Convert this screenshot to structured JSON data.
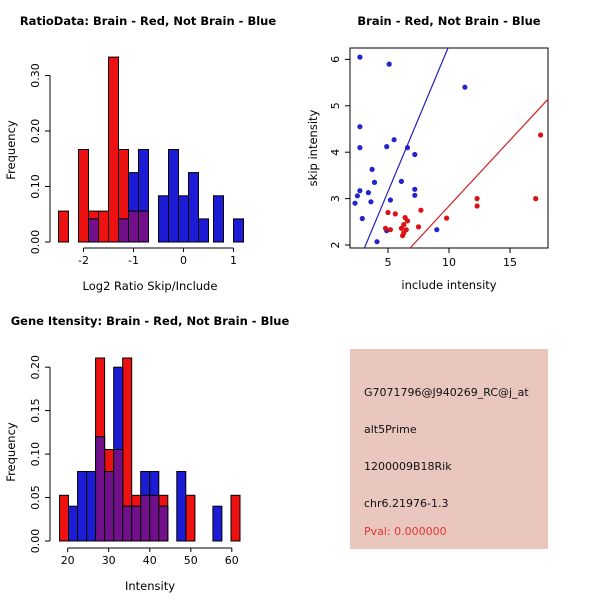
{
  "colors": {
    "red": "#ee1111",
    "blue": "#1c1cd6",
    "overlap_purple": "#72108c",
    "bar_border": "#000000",
    "point_red": "#dd1111",
    "point_blue": "#2424cc",
    "line_red": "#cc2020",
    "line_blue": "#2222bb",
    "info_box_pink": "#e9c6be",
    "pval_red": "#e03535",
    "axis_black": "#000000"
  },
  "chart_data": [
    {
      "id": "ratio_hist",
      "type": "bar",
      "title": "RatioData: Brain - Red, Not Brain - Blue",
      "xlabel": "Log2 Ratio Skip/Include",
      "ylabel": "Frequency",
      "xlim": [
        -2.67,
        1.27
      ],
      "ylim": [
        0,
        0.337
      ],
      "bin_width": 0.2,
      "grid": false,
      "xticks": [
        {
          "v": -2,
          "label": "-2"
        },
        {
          "v": -1,
          "label": "-1"
        },
        {
          "v": 0,
          "label": "0"
        },
        {
          "v": 1,
          "label": "1"
        }
      ],
      "yticks": [
        {
          "v": 0,
          "label": "0.00"
        },
        {
          "v": 0.1,
          "label": "0.10"
        },
        {
          "v": 0.2,
          "label": "0.20"
        },
        {
          "v": 0.3,
          "label": "0.30"
        }
      ],
      "series": [
        {
          "name": "Brain",
          "color_key": "red",
          "bars": [
            {
              "x0": -2.5,
              "h": 0.0556
            },
            {
              "x0": -2.1,
              "h": 0.1667
            },
            {
              "x0": -1.9,
              "h": 0.0556
            },
            {
              "x0": -1.7,
              "h": 0.0556
            },
            {
              "x0": -1.5,
              "h": 0.3333
            },
            {
              "x0": -1.3,
              "h": 0.1667
            },
            {
              "x0": -1.1,
              "h": 0.0556
            },
            {
              "x0": -0.9,
              "h": 0.0556
            }
          ]
        },
        {
          "name": "Not Brain",
          "color_key": "blue",
          "bars": [
            {
              "x0": -1.9,
              "h": 0.0417
            },
            {
              "x0": -1.3,
              "h": 0.0417
            },
            {
              "x0": -1.1,
              "h": 0.125
            },
            {
              "x0": -0.9,
              "h": 0.1667
            },
            {
              "x0": -0.5,
              "h": 0.0833
            },
            {
              "x0": -0.3,
              "h": 0.1667
            },
            {
              "x0": -0.1,
              "h": 0.0833
            },
            {
              "x0": 0.1,
              "h": 0.125
            },
            {
              "x0": 0.3,
              "h": 0.0417
            },
            {
              "x0": 0.6,
              "h": 0.0833
            },
            {
              "x0": 1.0,
              "h": 0.0417
            }
          ]
        }
      ]
    },
    {
      "id": "scatter",
      "type": "scatter",
      "title": "Brain - Red, Not Brain - Blue",
      "xlabel": "include intensity",
      "ylabel": "skip intensity",
      "xlim": [
        1.89,
        18.11
      ],
      "ylim": [
        1.935,
        6.246
      ],
      "grid": false,
      "xticks": [
        {
          "v": 5,
          "label": "5"
        },
        {
          "v": 10,
          "label": "10"
        },
        {
          "v": 15,
          "label": "15"
        }
      ],
      "yticks": [
        {
          "v": 2,
          "label": "2"
        },
        {
          "v": 3,
          "label": "3"
        },
        {
          "v": 4,
          "label": "4"
        },
        {
          "v": 5,
          "label": "5"
        },
        {
          "v": 6,
          "label": "6"
        }
      ],
      "series": [
        {
          "name": "Not Brain",
          "color_key": "point_blue",
          "points": [
            [
              2.7,
              6.05
            ],
            [
              5.1,
              5.9
            ],
            [
              11.3,
              5.4
            ],
            [
              2.7,
              4.55
            ],
            [
              5.5,
              4.27
            ],
            [
              2.7,
              4.1
            ],
            [
              4.9,
              4.12
            ],
            [
              6.6,
              4.1
            ],
            [
              7.2,
              3.95
            ],
            [
              3.7,
              3.63
            ],
            [
              3.9,
              3.35
            ],
            [
              6.1,
              3.37
            ],
            [
              2.7,
              3.17
            ],
            [
              3.4,
              3.13
            ],
            [
              2.5,
              3.06
            ],
            [
              3.6,
              2.93
            ],
            [
              2.3,
              2.9
            ],
            [
              5.2,
              2.97
            ],
            [
              7.2,
              3.2
            ],
            [
              7.2,
              3.07
            ],
            [
              2.9,
              2.57
            ],
            [
              4.1,
              2.07
            ],
            [
              4.9,
              2.31
            ],
            [
              9.0,
              2.33
            ]
          ]
        },
        {
          "name": "Brain",
          "color_key": "point_red",
          "points": [
            [
              17.5,
              4.37
            ],
            [
              17.1,
              3.0
            ],
            [
              12.3,
              3.0
            ],
            [
              12.3,
              2.84
            ],
            [
              9.8,
              2.58
            ],
            [
              7.7,
              2.75
            ],
            [
              7.5,
              2.39
            ],
            [
              6.6,
              2.52
            ],
            [
              6.5,
              2.33
            ],
            [
              6.4,
              2.59
            ],
            [
              6.3,
              2.44
            ],
            [
              6.3,
              2.26
            ],
            [
              6.2,
              2.2
            ],
            [
              6.1,
              2.36
            ],
            [
              5.6,
              2.67
            ],
            [
              5.0,
              2.7
            ],
            [
              4.8,
              2.36
            ],
            [
              5.2,
              2.33
            ]
          ]
        }
      ],
      "lines": [
        {
          "name": "not-brain-fit",
          "color_key": "line_blue",
          "slope": 0.63,
          "intercept": 0
        },
        {
          "name": "brain-fit",
          "color_key": "line_red",
          "slope": 0.284,
          "intercept": 0
        }
      ]
    },
    {
      "id": "gene_hist",
      "type": "bar",
      "title": "Gene Itensity: Brain - Red, Not Brain - Blue",
      "xlabel": "Intensity",
      "ylabel": "Frequency",
      "xlim": [
        15.68,
        63.7
      ],
      "ylim": [
        0,
        0.214
      ],
      "bin_width": 2.2,
      "grid": false,
      "xticks": [
        {
          "v": 20,
          "label": "20"
        },
        {
          "v": 30,
          "label": "30"
        },
        {
          "v": 40,
          "label": "40"
        },
        {
          "v": 50,
          "label": "50"
        },
        {
          "v": 60,
          "label": "60"
        }
      ],
      "yticks": [
        {
          "v": 0,
          "label": "0.00"
        },
        {
          "v": 0.05,
          "label": "0.05"
        },
        {
          "v": 0.1,
          "label": "0.10"
        },
        {
          "v": 0.15,
          "label": "0.15"
        },
        {
          "v": 0.2,
          "label": "0.20"
        }
      ],
      "series": [
        {
          "name": "Brain",
          "color_key": "red",
          "bars": [
            {
              "x0": 18.0,
              "h": 0.0526
            },
            {
              "x0": 26.8,
              "h": 0.2105
            },
            {
              "x0": 29.0,
              "h": 0.1053
            },
            {
              "x0": 31.2,
              "h": 0.1053
            },
            {
              "x0": 33.4,
              "h": 0.2105
            },
            {
              "x0": 35.6,
              "h": 0.0526
            },
            {
              "x0": 37.8,
              "h": 0.0526
            },
            {
              "x0": 40.0,
              "h": 0.0526
            },
            {
              "x0": 42.2,
              "h": 0.0526
            },
            {
              "x0": 48.8,
              "h": 0.0526
            },
            {
              "x0": 59.8,
              "h": 0.0526
            }
          ]
        },
        {
          "name": "Not Brain",
          "color_key": "blue",
          "bars": [
            {
              "x0": 20.2,
              "h": 0.04
            },
            {
              "x0": 22.4,
              "h": 0.08
            },
            {
              "x0": 24.6,
              "h": 0.08
            },
            {
              "x0": 26.8,
              "h": 0.12
            },
            {
              "x0": 29.0,
              "h": 0.08
            },
            {
              "x0": 31.2,
              "h": 0.2
            },
            {
              "x0": 33.4,
              "h": 0.04
            },
            {
              "x0": 35.6,
              "h": 0.04
            },
            {
              "x0": 37.8,
              "h": 0.08
            },
            {
              "x0": 40.0,
              "h": 0.08
            },
            {
              "x0": 42.2,
              "h": 0.04
            },
            {
              "x0": 46.6,
              "h": 0.08
            },
            {
              "x0": 55.4,
              "h": 0.04
            }
          ]
        }
      ]
    }
  ],
  "info_panel": {
    "probe_id": "G7071796@J940269_RC@j_at",
    "splice_type": "alt5Prime",
    "gene": "1200009B18Rik",
    "locus": "chr6.21976-1.3",
    "pval_label": "Pval: 0.000000"
  }
}
